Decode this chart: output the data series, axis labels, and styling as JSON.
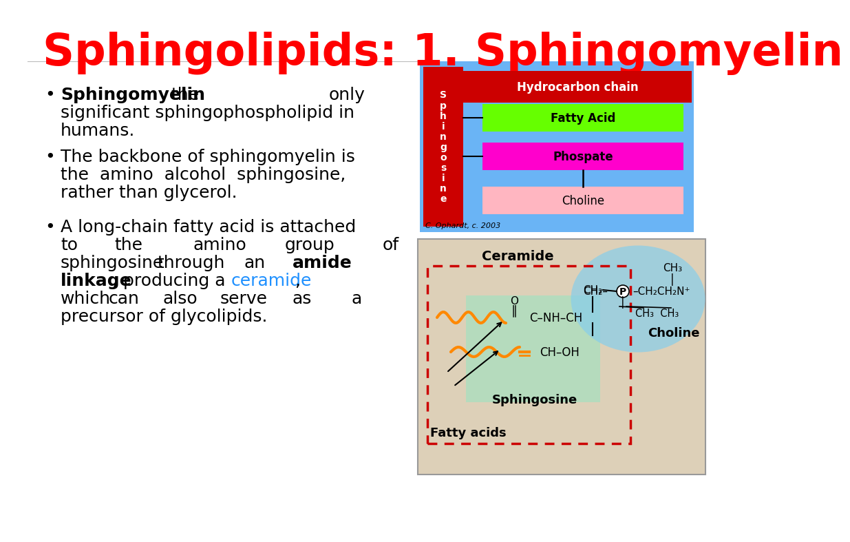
{
  "title": "Sphingolipids: 1. Sphingomyelin",
  "title_color": "#ff0000",
  "title_fontsize": 46,
  "bg_color": "#ffffff",
  "text_color": "#000000",
  "text_fontsize": 18,
  "cyan_color": "#1e90ff",
  "diagram1_bg": "#6ab4f5",
  "sphingosine_color": "#cc0000",
  "hydrocarbon_color": "#cc0000",
  "fatty_acid_color": "#66ff00",
  "phosphate_color": "#ff00cc",
  "choline_color": "#ffb6c1",
  "diagram2_bg": "#ddd0b8",
  "ceramide_region": "#b0e0c8",
  "blue_blob": "#87ceeb",
  "dashed_box_color": "#cc0000",
  "orange_chain": "#ff8800",
  "sphingosine_arrow_region": "#b0e8c8"
}
